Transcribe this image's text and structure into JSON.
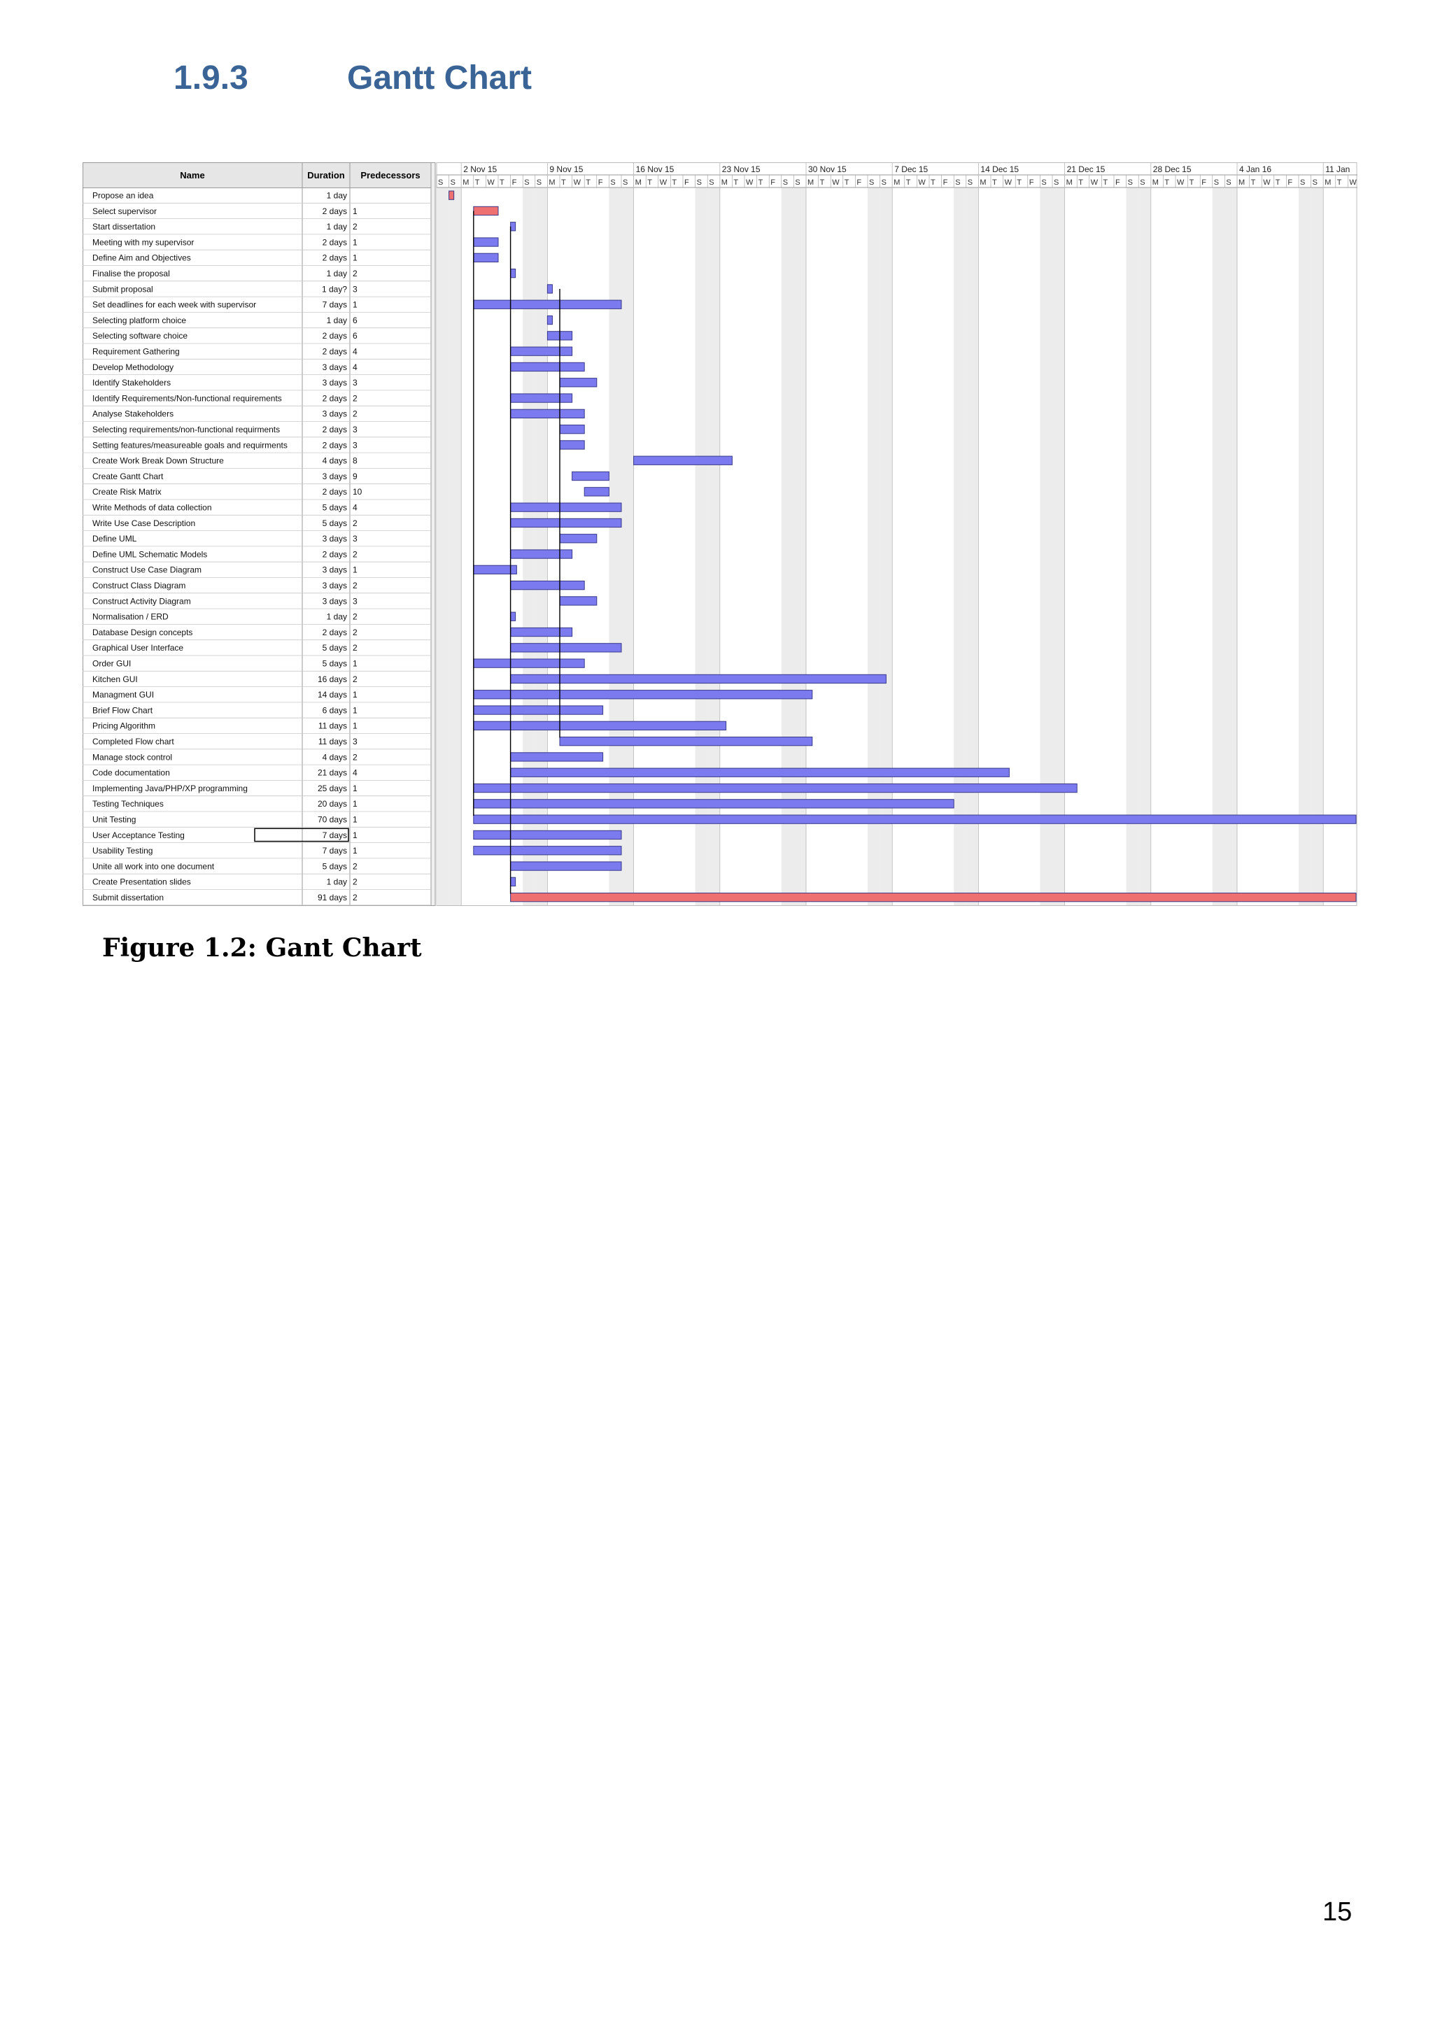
{
  "section": {
    "number": "1.9.3",
    "title": "Gantt Chart"
  },
  "caption": "Figure 1.2: Gant Chart",
  "page_number": "15",
  "chart_data": {
    "type": "gantt",
    "columns": {
      "name": "Name",
      "duration": "Duration",
      "predecessors": "Predecessors"
    },
    "timeline_start": "2015-10-31",
    "week_labels": [
      "2 Nov 15",
      "9 Nov 15",
      "16 Nov 15",
      "23 Nov 15",
      "30 Nov 15",
      "7 Dec 15",
      "14 Dec 15",
      "21 Dec 15",
      "28 Dec 15",
      "4 Jan 16",
      "11 Jan"
    ],
    "day_letters": [
      "S",
      "S",
      "M",
      "T",
      "W",
      "T",
      "F"
    ],
    "colors": {
      "task_bar": "#7b7bef",
      "critical_bar": "#ee7070",
      "border": "#3a3a8a"
    },
    "tasks": [
      {
        "name": "Propose an idea",
        "duration": "1 day",
        "pred": "",
        "start": "2015-11-01",
        "days": 0.4,
        "critical": true
      },
      {
        "name": "Select supervisor",
        "duration": "2 days",
        "pred": "1",
        "start": "2015-11-03",
        "days": 2,
        "critical": true
      },
      {
        "name": "Start dissertation",
        "duration": "1 day",
        "pred": "2",
        "start": "2015-11-06",
        "days": 0.4
      },
      {
        "name": "Meeting with my supervisor",
        "duration": "2 days",
        "pred": "1",
        "start": "2015-11-03",
        "days": 2
      },
      {
        "name": "Define Aim and Objectives",
        "duration": "2 days",
        "pred": "1",
        "start": "2015-11-03",
        "days": 2
      },
      {
        "name": "Finalise the proposal",
        "duration": "1 day",
        "pred": "2",
        "start": "2015-11-06",
        "days": 0.4
      },
      {
        "name": "Submit proposal",
        "duration": "1 day?",
        "pred": "3",
        "start": "2015-11-09",
        "days": 0.4
      },
      {
        "name": "Set deadlines for each week with supervisor",
        "duration": "7 days",
        "pred": "1",
        "start": "2015-11-03",
        "days": 12
      },
      {
        "name": "Selecting platform choice",
        "duration": "1 day",
        "pred": "6",
        "start": "2015-11-09",
        "days": 0.4
      },
      {
        "name": "Selecting software choice",
        "duration": "2 days",
        "pred": "6",
        "start": "2015-11-09",
        "days": 2
      },
      {
        "name": "Requirement Gathering",
        "duration": "2 days",
        "pred": "4",
        "start": "2015-11-06",
        "days": 5
      },
      {
        "name": "Develop Methodology",
        "duration": "3 days",
        "pred": "4",
        "start": "2015-11-06",
        "days": 6
      },
      {
        "name": "Identify Stakeholders",
        "duration": "3 days",
        "pred": "3",
        "start": "2015-11-10",
        "days": 3
      },
      {
        "name": "Identify Requirements/Non-functional requirements",
        "duration": "2 days",
        "pred": "2",
        "start": "2015-11-06",
        "days": 5
      },
      {
        "name": "Analyse Stakeholders",
        "duration": "3 days",
        "pred": "2",
        "start": "2015-11-06",
        "days": 6
      },
      {
        "name": "Selecting requirements/non-functional requirments",
        "duration": "2 days",
        "pred": "3",
        "start": "2015-11-10",
        "days": 2
      },
      {
        "name": "Setting features/measureable goals and requirments",
        "duration": "2 days",
        "pred": "3",
        "start": "2015-11-10",
        "days": 2
      },
      {
        "name": "Create Work Break Down Structure",
        "duration": "4 days",
        "pred": "8",
        "start": "2015-11-16",
        "days": 8
      },
      {
        "name": "Create Gantt Chart",
        "duration": "3 days",
        "pred": "9",
        "start": "2015-11-11",
        "days": 3
      },
      {
        "name": "Create Risk Matrix",
        "duration": "2 days",
        "pred": "10",
        "start": "2015-11-12",
        "days": 2
      },
      {
        "name": "Write Methods of data collection",
        "duration": "5 days",
        "pred": "4",
        "start": "2015-11-06",
        "days": 9
      },
      {
        "name": "Write Use Case Description",
        "duration": "5 days",
        "pred": "2",
        "start": "2015-11-06",
        "days": 9
      },
      {
        "name": "Define UML",
        "duration": "3 days",
        "pred": "3",
        "start": "2015-11-10",
        "days": 3
      },
      {
        "name": "Define UML Schematic Models",
        "duration": "2 days",
        "pred": "2",
        "start": "2015-11-06",
        "days": 5
      },
      {
        "name": "Construct Use Case Diagram",
        "duration": "3 days",
        "pred": "1",
        "start": "2015-11-03",
        "days": 3.5
      },
      {
        "name": "Construct Class Diagram",
        "duration": "3 days",
        "pred": "2",
        "start": "2015-11-06",
        "days": 6
      },
      {
        "name": "Construct Activity Diagram",
        "duration": "3 days",
        "pred": "3",
        "start": "2015-11-10",
        "days": 3
      },
      {
        "name": "Normalisation / ERD",
        "duration": "1 day",
        "pred": "2",
        "start": "2015-11-06",
        "days": 0.4
      },
      {
        "name": "Database Design concepts",
        "duration": "2 days",
        "pred": "2",
        "start": "2015-11-06",
        "days": 5
      },
      {
        "name": "Graphical User Interface",
        "duration": "5 days",
        "pred": "2",
        "start": "2015-11-06",
        "days": 9
      },
      {
        "name": "Order GUI",
        "duration": "5 days",
        "pred": "1",
        "start": "2015-11-03",
        "days": 9
      },
      {
        "name": "Kitchen GUI",
        "duration": "16 days",
        "pred": "2",
        "start": "2015-11-06",
        "days": 30.5
      },
      {
        "name": "Managment GUI",
        "duration": "14 days",
        "pred": "1",
        "start": "2015-11-03",
        "days": 27.5
      },
      {
        "name": "Brief Flow Chart",
        "duration": "6 days",
        "pred": "1",
        "start": "2015-11-03",
        "days": 10.5
      },
      {
        "name": "Pricing Algorithm",
        "duration": "11 days",
        "pred": "1",
        "start": "2015-11-03",
        "days": 20.5
      },
      {
        "name": "Completed Flow chart",
        "duration": "11 days",
        "pred": "3",
        "start": "2015-11-10",
        "days": 20.5
      },
      {
        "name": "Manage stock control",
        "duration": "4 days",
        "pred": "2",
        "start": "2015-11-06",
        "days": 7.5
      },
      {
        "name": "Code documentation",
        "duration": "21 days",
        "pred": "4",
        "start": "2015-11-06",
        "days": 40.5
      },
      {
        "name": "Implementing Java/PHP/XP programming",
        "duration": "25 days",
        "pred": "1",
        "start": "2015-11-03",
        "days": 49
      },
      {
        "name": "Testing Techniques",
        "duration": "20 days",
        "pred": "1",
        "start": "2015-11-03",
        "days": 39
      },
      {
        "name": "Unit Testing",
        "duration": "70 days",
        "pred": "1",
        "start": "2015-11-03",
        "days": 100
      },
      {
        "name": "User Acceptance Testing",
        "duration": "7 days",
        "pred": "1",
        "start": "2015-11-03",
        "days": 12
      },
      {
        "name": "Usability Testing",
        "duration": "7 days",
        "pred": "1",
        "start": "2015-11-03",
        "days": 12
      },
      {
        "name": "Unite all work into one document",
        "duration": "5 days",
        "pred": "2",
        "start": "2015-11-06",
        "days": 9
      },
      {
        "name": "Create Presentation slides",
        "duration": "1 day",
        "pred": "2",
        "start": "2015-11-06",
        "days": 0.4
      },
      {
        "name": "Submit dissertation",
        "duration": "91 days",
        "pred": "2",
        "start": "2015-11-06",
        "days": 100,
        "critical": true
      }
    ]
  }
}
